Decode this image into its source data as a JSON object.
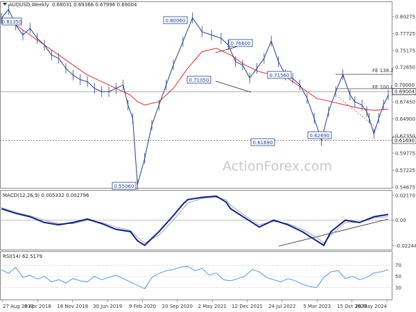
{
  "header": {
    "symbol": "AUDUSD,Weekly",
    "ohlc": "0.68031 0.69366 0.67996 0.69004"
  },
  "watermark": "ActionForex.com",
  "colors": {
    "price": "#1f3f8f",
    "ma": "#e8252a",
    "macd": "#0b1f8a",
    "signal": "#9a9a9a",
    "rsi": "#3a8ee6",
    "grid": "#cfcfcf",
    "label_border": "#1f3f8f"
  },
  "chart_data": [
    {
      "type": "line",
      "panel": "price",
      "y_ticks": [
        "0.80275",
        "0.77725",
        "0.75175",
        "0.72650",
        "0.70000",
        "0.67450",
        "0.64900",
        "0.62350",
        "0.59775",
        "0.57225",
        "0.54675"
      ],
      "ylim": [
        0.54675,
        0.815
      ],
      "x_labels": [
        "27 Aug 2017",
        "8 Apr 2018",
        "18 Nov 2018",
        "30 Jun 2019",
        "9 Feb 2020",
        "20 Sep 2020",
        "2 May 2021",
        "12 Dec 2021",
        "24 Jul 2022",
        "5 Mar 2023",
        "15 Oct 2023",
        "26 May 2024"
      ],
      "series": [
        {
          "x": [
            0,
            1.5,
            3,
            4.5,
            6,
            7.5,
            9,
            10.5,
            12,
            13.5,
            15,
            16.5,
            18,
            19.5,
            21,
            22.5,
            24,
            25.5,
            26.5,
            27.5,
            28.5,
            30,
            31.5,
            33,
            34.5,
            36,
            38,
            40,
            42,
            44,
            46,
            47.5,
            49,
            50.5,
            52,
            53.5,
            55,
            56.5,
            58,
            59.5,
            61,
            62.5,
            64,
            65.5,
            67,
            68.5,
            70,
            71.5,
            73,
            74,
            75.5,
            76.5,
            77,
            78,
            79,
            80,
            81
          ],
          "values": [
            0.8,
            0.8135,
            0.79,
            0.775,
            0.785,
            0.77,
            0.76,
            0.745,
            0.74,
            0.725,
            0.715,
            0.708,
            0.705,
            0.695,
            0.69,
            0.69,
            0.695,
            0.7,
            0.67,
            0.65,
            0.5506,
            0.59,
            0.64,
            0.67,
            0.7,
            0.73,
            0.765,
            0.8006,
            0.78,
            0.775,
            0.77,
            0.76,
            0.735,
            0.73,
            0.7105,
            0.725,
            0.74,
            0.766,
            0.735,
            0.715,
            0.71,
            0.7,
            0.68,
            0.65,
            0.6169,
            0.66,
            0.69,
            0.7156,
            0.685,
            0.675,
            0.67,
            0.66,
            0.65,
            0.6269,
            0.65,
            0.67,
            0.685
          ]
        },
        {
          "x": [
            0,
            3,
            6,
            9,
            12,
            15,
            18,
            21,
            24,
            27,
            28.5,
            30,
            33,
            36,
            39,
            42,
            45,
            48,
            51,
            54,
            57,
            60,
            63,
            66,
            69,
            72,
            75,
            78,
            81
          ],
          "values": [
            0.8,
            0.79,
            0.775,
            0.76,
            0.745,
            0.73,
            0.715,
            0.705,
            0.695,
            0.685,
            0.675,
            0.67,
            0.675,
            0.695,
            0.725,
            0.75,
            0.755,
            0.745,
            0.73,
            0.72,
            0.715,
            0.71,
            0.695,
            0.68,
            0.675,
            0.67,
            0.665,
            0.662,
            0.664
          ]
        }
      ],
      "annotations": [
        "0.81350",
        "0.80060",
        "0.76600",
        "0.71050",
        "0.71560",
        "0.61690",
        "0.62690",
        "0.55060"
      ],
      "level_labels": [
        "FE 138.2",
        "FE 100.0",
        "0.70000",
        "0.69004",
        "0.61690"
      ],
      "fe_levels": [
        0.716,
        0.6945
      ],
      "price_level": 0.69004,
      "support_level": 0.6169
    },
    {
      "type": "line",
      "panel": "macd",
      "title": "MACD(12,26,9) 0.005332 0.002796",
      "y_ticks": [
        "0.021701",
        "0.00",
        "-0.022445"
      ],
      "ylim": [
        -0.0245,
        0.024
      ],
      "series": [
        {
          "x": [
            0,
            3,
            6,
            9,
            12,
            15,
            18,
            21,
            24,
            27,
            28.5,
            30,
            33,
            36,
            38,
            39,
            42,
            45,
            47,
            48,
            51,
            54,
            57,
            60,
            63,
            66,
            67.5,
            69,
            72,
            75,
            78,
            81
          ],
          "values": [
            0.01,
            0.006,
            0.003,
            -0.002,
            -0.004,
            -0.002,
            0.001,
            -0.003,
            -0.008,
            -0.01,
            -0.018,
            -0.022,
            -0.01,
            0.004,
            0.014,
            0.018,
            0.02,
            0.021,
            0.016,
            0.01,
            0.002,
            -0.006,
            0.0,
            -0.004,
            -0.01,
            -0.018,
            -0.022,
            -0.01,
            0.0,
            -0.002,
            0.003,
            0.005
          ]
        },
        {
          "x": [
            0,
            3,
            6,
            9,
            12,
            15,
            18,
            21,
            24,
            27,
            28.5,
            30,
            33,
            36,
            38,
            39,
            42,
            45,
            47,
            48,
            51,
            54,
            57,
            60,
            63,
            66,
            67.5,
            69,
            72,
            75,
            78,
            81
          ],
          "values": [
            0.011,
            0.007,
            0.004,
            0.0,
            -0.003,
            -0.003,
            0.0,
            -0.002,
            -0.006,
            -0.009,
            -0.015,
            -0.02,
            -0.013,
            0.0,
            0.01,
            0.015,
            0.019,
            0.02,
            0.018,
            0.013,
            0.004,
            -0.004,
            -0.001,
            -0.003,
            -0.008,
            -0.015,
            -0.02,
            -0.013,
            -0.002,
            -0.002,
            0.002,
            0.003
          ]
        }
      ]
    },
    {
      "type": "line",
      "panel": "rsi",
      "title": "RSI(14) 62.5179",
      "y_ticks": [
        "70",
        "50",
        "30"
      ],
      "ylim": [
        10,
        90
      ],
      "series": [
        {
          "x": [
            0,
            1.5,
            3,
            4.5,
            6,
            7.5,
            9,
            10.5,
            12,
            13.5,
            15,
            16.5,
            18,
            19.5,
            21,
            22.5,
            24,
            25.5,
            27,
            28.5,
            30,
            31.5,
            33,
            34.5,
            36,
            37.5,
            39,
            40.5,
            42,
            43.5,
            45,
            46.5,
            48,
            49.5,
            51,
            52.5,
            54,
            55.5,
            57,
            58.5,
            60,
            61.5,
            63,
            64.5,
            66,
            67.5,
            69,
            70.5,
            72,
            73.5,
            75,
            76.5,
            78,
            79.5,
            81
          ],
          "values": [
            62,
            55,
            66,
            48,
            52,
            45,
            50,
            40,
            44,
            38,
            46,
            42,
            40,
            50,
            44,
            48,
            52,
            46,
            40,
            34,
            28,
            48,
            55,
            60,
            62,
            66,
            68,
            60,
            64,
            52,
            56,
            44,
            42,
            46,
            50,
            62,
            58,
            48,
            44,
            40,
            46,
            42,
            36,
            32,
            30,
            48,
            58,
            60,
            46,
            50,
            44,
            48,
            56,
            58,
            62
          ]
        }
      ]
    }
  ]
}
